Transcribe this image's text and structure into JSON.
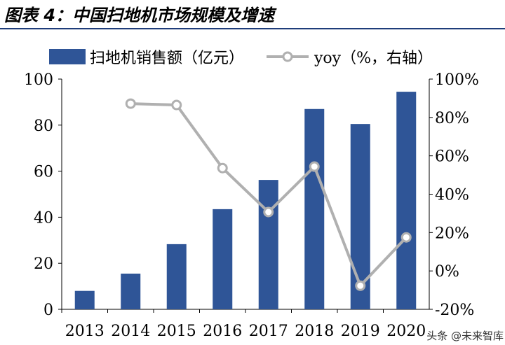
{
  "title": "图表 4：中国扫地机市场规模及增速",
  "watermark": "头条 @未来智库",
  "chart_data": {
    "type": "bar+line",
    "categories": [
      "2013",
      "2014",
      "2015",
      "2016",
      "2017",
      "2018",
      "2019",
      "2020"
    ],
    "series": [
      {
        "name": "扫地机销售额（亿元）",
        "type": "bar",
        "axis": "left",
        "color": "#2f5597",
        "values": [
          8,
          15.5,
          28.3,
          43.5,
          56.2,
          87,
          80.5,
          94.5
        ]
      },
      {
        "name": "yoy（%，右轴）",
        "type": "line",
        "axis": "right",
        "color": "#b0b0b0",
        "values": [
          null,
          87.2,
          86.5,
          53.6,
          30.7,
          54.4,
          -7.7,
          17.5
        ]
      }
    ],
    "ylim_left": [
      0,
      100
    ],
    "yticks_left": [
      "0",
      "20",
      "40",
      "60",
      "80",
      "100"
    ],
    "ylim_right": [
      -20,
      100
    ],
    "yticks_right": [
      "-20%",
      "0%",
      "20%",
      "40%",
      "60%",
      "80%",
      "100%"
    ],
    "legend": "top",
    "grid": false
  }
}
